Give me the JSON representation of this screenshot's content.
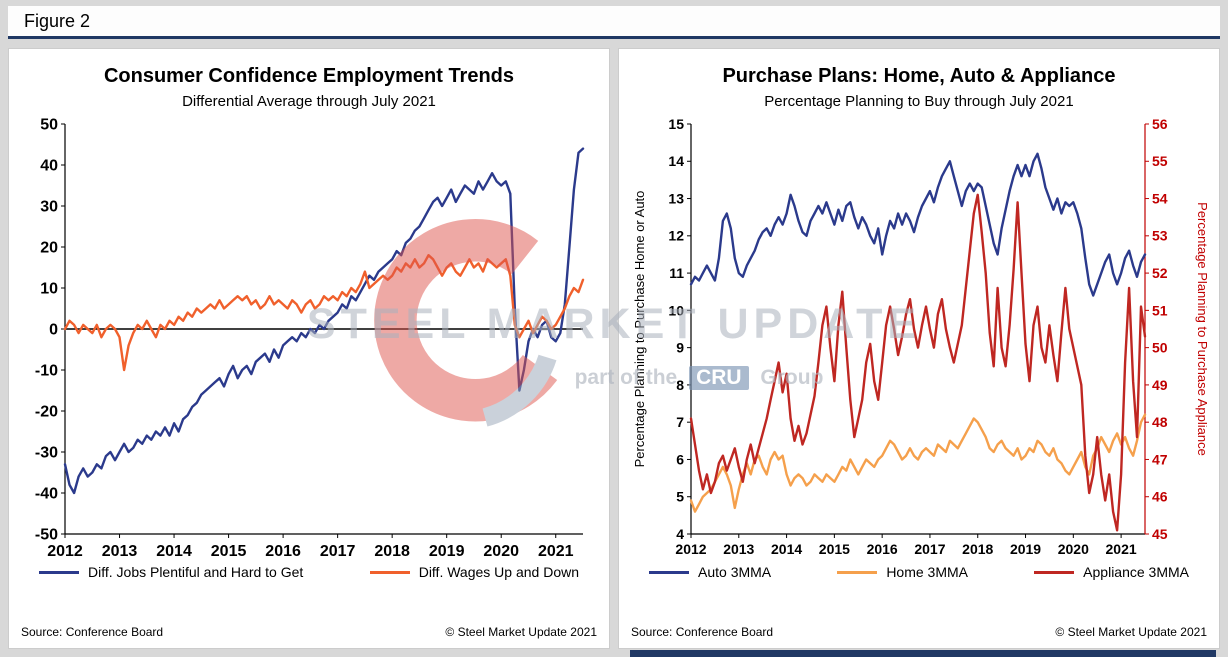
{
  "figure": {
    "label": "Figure 2"
  },
  "watermark": {
    "line1": "STEEL MARKET UPDATE",
    "line2_prefix": "part of the",
    "line2_box": "CRU",
    "line2_suffix": "Group"
  },
  "chart_data": [
    {
      "type": "line",
      "title": "Consumer Confidence Employment Trends",
      "subtitle": "Differential Average through July 2021",
      "x_years": [
        2012,
        2013,
        2014,
        2015,
        2016,
        2017,
        2018,
        2019,
        2020,
        2021
      ],
      "x_frequency": "monthly",
      "y_axis": {
        "min": -50,
        "max": 50,
        "step": 10,
        "color": "#000000"
      },
      "zero_line": true,
      "grid": false,
      "legend_position": "bottom",
      "layout": {
        "l": 44,
        "r": 14,
        "t": 10,
        "b": 30,
        "tick_size": 16
      },
      "series": [
        {
          "name": "Diff. Jobs Plentiful and Hard to Get",
          "color": "#2B3A8C",
          "axis": "y",
          "values": [
            -33,
            -38,
            -40,
            -36,
            -34,
            -36,
            -35,
            -33,
            -34,
            -31,
            -30,
            -32,
            -30,
            -28,
            -30,
            -29,
            -27,
            -28,
            -26,
            -27,
            -25,
            -26,
            -24,
            -26,
            -23,
            -25,
            -22,
            -21,
            -19,
            -18,
            -16,
            -15,
            -14,
            -13,
            -12,
            -14,
            -11,
            -9,
            -12,
            -10,
            -9,
            -11,
            -8,
            -7,
            -6,
            -8,
            -5,
            -7,
            -4,
            -3,
            -2,
            -3,
            -1,
            -2,
            0,
            -1,
            1,
            0,
            2,
            3,
            4,
            6,
            5,
            8,
            7,
            9,
            11,
            13,
            12,
            14,
            15,
            16,
            17,
            19,
            18,
            21,
            22,
            24,
            25,
            27,
            29,
            31,
            32,
            30,
            32,
            34,
            31,
            33,
            35,
            34,
            33,
            36,
            34,
            36,
            38,
            36,
            35,
            36,
            33,
            5,
            -15,
            -10,
            -3,
            0,
            -2,
            1,
            2,
            -2,
            -3,
            -1,
            6,
            20,
            34,
            43,
            44
          ]
        },
        {
          "name": "Diff. Wages Up and Down",
          "color": "#F0602C",
          "axis": "y",
          "values": [
            0,
            2,
            1,
            -1,
            1,
            0,
            -1,
            1,
            -2,
            0,
            1,
            0,
            -2,
            -10,
            -4,
            -1,
            1,
            0,
            2,
            0,
            -2,
            1,
            0,
            2,
            1,
            3,
            2,
            4,
            3,
            5,
            4,
            5,
            6,
            5,
            7,
            5,
            6,
            7,
            8,
            7,
            8,
            6,
            7,
            5,
            6,
            8,
            6,
            7,
            6,
            5,
            7,
            6,
            4,
            6,
            7,
            5,
            6,
            8,
            7,
            8,
            7,
            9,
            8,
            10,
            9,
            11,
            14,
            10,
            11,
            12,
            13,
            12,
            13,
            15,
            14,
            16,
            15,
            17,
            15,
            16,
            18,
            17,
            15,
            13,
            15,
            16,
            14,
            13,
            15,
            17,
            15,
            16,
            14,
            17,
            16,
            15,
            16,
            17,
            13,
            1,
            -2,
            0,
            2,
            -1,
            1,
            3,
            2,
            0,
            1,
            3,
            5,
            8,
            10,
            9,
            12
          ]
        }
      ],
      "source": "Source: Conference Board",
      "copyright": "© Steel Market Update 2021"
    },
    {
      "type": "line",
      "title": "Purchase Plans: Home, Auto & Appliance",
      "subtitle": "Percentage Planning to Buy through July 2021",
      "x_years": [
        2012,
        2013,
        2014,
        2015,
        2016,
        2017,
        2018,
        2019,
        2020,
        2021
      ],
      "x_frequency": "monthly",
      "y_axis": {
        "min": 4,
        "max": 15,
        "step": 1,
        "label": "Percentage Planning to Purchase Home or Auto",
        "color": "#000000"
      },
      "y2_axis": {
        "min": 45,
        "max": 56,
        "step": 1,
        "label": "Percentage Planning to Purchase Appliance",
        "color": "#C00000"
      },
      "zero_line": false,
      "grid": false,
      "legend_position": "bottom",
      "layout": {
        "l": 60,
        "r": 62,
        "t": 10,
        "b": 30,
        "tick_size": 14
      },
      "series": [
        {
          "name": "Auto 3MMA",
          "color": "#2B3A8C",
          "axis": "y",
          "values": [
            10.7,
            10.9,
            10.8,
            11.0,
            11.2,
            11.0,
            10.8,
            11.4,
            12.4,
            12.6,
            12.2,
            11.4,
            11.0,
            10.9,
            11.2,
            11.4,
            11.6,
            11.9,
            12.1,
            12.2,
            12.0,
            12.3,
            12.5,
            12.3,
            12.6,
            13.1,
            12.8,
            12.4,
            12.1,
            12.0,
            12.4,
            12.6,
            12.8,
            12.6,
            12.9,
            12.6,
            12.3,
            12.7,
            12.4,
            12.8,
            12.9,
            12.5,
            12.2,
            12.5,
            12.3,
            12.0,
            11.8,
            12.2,
            11.5,
            12.0,
            12.4,
            12.2,
            12.6,
            12.3,
            12.6,
            12.4,
            12.1,
            12.5,
            12.8,
            13.0,
            13.2,
            12.9,
            13.3,
            13.6,
            13.8,
            14.0,
            13.6,
            13.2,
            12.8,
            13.2,
            13.4,
            13.2,
            13.4,
            13.3,
            12.8,
            12.3,
            11.8,
            11.5,
            12.2,
            12.7,
            13.2,
            13.6,
            13.9,
            13.6,
            13.9,
            13.6,
            14.0,
            14.2,
            13.8,
            13.3,
            13.0,
            12.7,
            13.0,
            12.6,
            12.9,
            12.8,
            12.9,
            12.6,
            12.2,
            11.4,
            10.7,
            10.4,
            10.7,
            11.0,
            11.3,
            11.5,
            11.0,
            10.7,
            11.0,
            11.4,
            11.6,
            11.2,
            10.9,
            11.3,
            11.5
          ]
        },
        {
          "name": "Home 3MMA",
          "color": "#F5A04C",
          "axis": "y",
          "values": [
            4.9,
            4.6,
            4.8,
            5.0,
            5.1,
            5.2,
            5.4,
            5.6,
            5.8,
            5.6,
            5.3,
            4.7,
            5.2,
            5.6,
            5.9,
            5.6,
            6.0,
            6.1,
            5.8,
            5.6,
            6.0,
            6.2,
            6.0,
            6.1,
            5.6,
            5.3,
            5.5,
            5.6,
            5.5,
            5.3,
            5.4,
            5.6,
            5.5,
            5.4,
            5.6,
            5.5,
            5.4,
            5.6,
            5.8,
            5.7,
            6.0,
            5.8,
            5.6,
            5.8,
            6.0,
            5.9,
            5.8,
            6.0,
            6.1,
            6.3,
            6.5,
            6.4,
            6.2,
            6.0,
            6.1,
            6.3,
            6.1,
            6.0,
            6.2,
            6.3,
            6.2,
            6.1,
            6.4,
            6.3,
            6.2,
            6.5,
            6.4,
            6.3,
            6.5,
            6.7,
            6.9,
            7.1,
            7.0,
            6.8,
            6.6,
            6.3,
            6.2,
            6.4,
            6.5,
            6.3,
            6.2,
            6.1,
            6.3,
            6.0,
            6.1,
            6.3,
            6.2,
            6.5,
            6.4,
            6.2,
            6.1,
            6.3,
            6.0,
            5.9,
            5.7,
            5.6,
            5.8,
            6.0,
            6.2,
            5.8,
            5.6,
            6.1,
            6.3,
            6.6,
            6.4,
            6.2,
            6.5,
            6.7,
            6.4,
            6.6,
            6.3,
            6.1,
            6.5,
            7.0,
            7.2
          ]
        },
        {
          "name": "Appliance 3MMA",
          "color": "#BF2722",
          "axis": "y2",
          "values": [
            48.1,
            47.4,
            46.7,
            46.2,
            46.6,
            46.1,
            46.4,
            46.9,
            47.1,
            46.7,
            47.0,
            47.3,
            46.8,
            46.4,
            47.0,
            47.4,
            46.9,
            47.3,
            47.7,
            48.1,
            48.6,
            49.1,
            49.6,
            48.8,
            49.3,
            48.1,
            47.5,
            47.9,
            47.4,
            47.7,
            48.2,
            48.7,
            49.6,
            50.6,
            51.1,
            50.0,
            49.1,
            50.6,
            51.5,
            50.0,
            48.6,
            47.6,
            48.1,
            48.6,
            49.6,
            50.1,
            49.1,
            48.6,
            49.6,
            50.6,
            51.1,
            50.5,
            49.8,
            50.3,
            50.9,
            51.3,
            50.5,
            50.0,
            50.6,
            51.1,
            50.5,
            50.0,
            50.9,
            51.3,
            50.5,
            50.0,
            49.6,
            50.1,
            50.6,
            51.6,
            52.6,
            53.6,
            54.1,
            53.1,
            52.0,
            50.4,
            49.5,
            51.6,
            50.0,
            49.5,
            50.6,
            52.1,
            53.9,
            52.0,
            50.1,
            49.1,
            50.6,
            51.1,
            50.0,
            49.6,
            50.6,
            49.8,
            49.1,
            50.4,
            51.6,
            50.5,
            50.0,
            49.5,
            49.0,
            47.1,
            46.1,
            46.6,
            47.6,
            46.6,
            45.9,
            46.6,
            45.6,
            45.1,
            46.6,
            49.6,
            51.6,
            49.1,
            47.6,
            51.1,
            50.3
          ]
        }
      ],
      "source": "Source: Conference Board",
      "copyright": "© Steel Market Update 2021"
    }
  ]
}
